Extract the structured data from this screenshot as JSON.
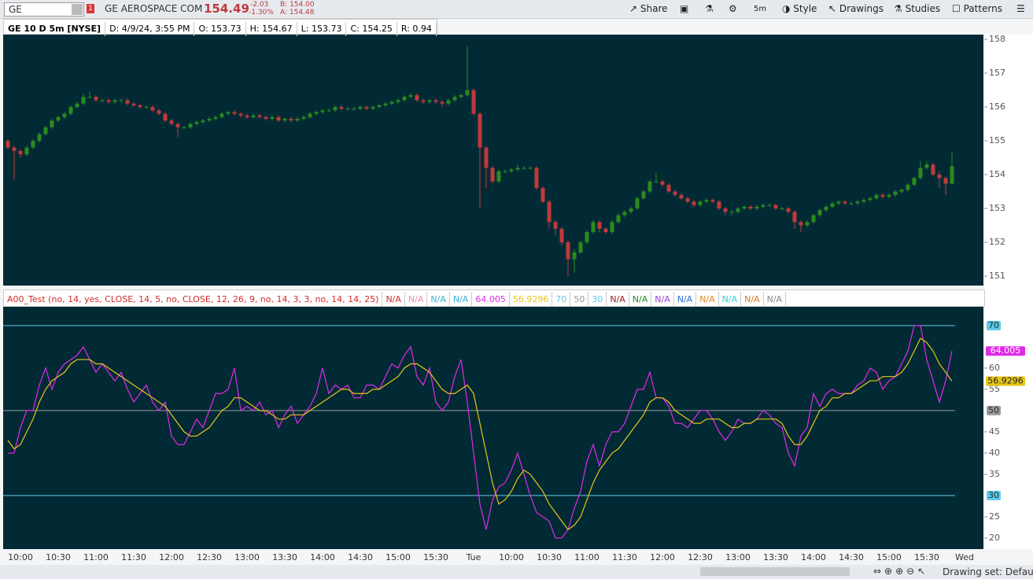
{
  "toolbar": {
    "symbol": "GE",
    "alert_count": "1",
    "company": "GE AEROSPACE COM",
    "last": "154.49",
    "change": "-2.03",
    "change_pct": "-1.30%",
    "bid": "B: 154.00",
    "ask": "A: 154.48",
    "buttons": [
      "Share",
      "5m",
      "Style",
      "Drawings",
      "Studies",
      "Patterns"
    ]
  },
  "info_bar": [
    "GE 10 D 5m [NYSE]",
    "D: 4/9/24, 3:55 PM",
    "O: 153.73",
    "H: 154.67",
    "L: 153.73",
    "C: 154.25",
    "R: 0.94"
  ],
  "study_legend": {
    "title": "A00_Test (no, 14, yes, CLOSE, 14, 5, no, CLOSE, 12, 26, 9, no, 14, 3, 3, no, 14, 14, 25)",
    "title_color": "#d42a2a",
    "items_before": [
      {
        "text": "N/A",
        "color": "#d42a2a"
      },
      {
        "text": "N/A",
        "color": "#f08ab0"
      },
      {
        "text": "N/A",
        "color": "#3aaed8"
      },
      {
        "text": "N/A",
        "color": "#3aaed8"
      }
    ],
    "items_after": [
      {
        "text": "N/A",
        "color": "#a01818"
      },
      {
        "text": "N/A",
        "color": "#1e8a1e"
      },
      {
        "text": "N/A",
        "color": "#9a3ae0"
      },
      {
        "text": "N/A",
        "color": "#2a6ad0"
      },
      {
        "text": "N/A",
        "color": "#e08a1a"
      },
      {
        "text": "N/A",
        "color": "#2ad0e0"
      },
      {
        "text": "N/A",
        "color": "#e07a1a"
      },
      {
        "text": "N/A",
        "color": "#888888"
      }
    ]
  },
  "next_session_label": "Wed",
  "status_bar": {
    "drawing_set": "Drawing set: Default"
  },
  "chart_data": [
    {
      "type": "candlestick",
      "up_color": "#2a8a1e",
      "down_color": "#c0393b",
      "ylim": [
        150.72,
        158.14
      ],
      "yticks": [
        151,
        152,
        153,
        154,
        155,
        156,
        157,
        158
      ],
      "open": [
        155.0,
        154.8,
        154.7,
        154.6,
        154.8,
        155.0,
        155.2,
        155.4,
        155.6,
        155.7,
        155.8,
        156.0,
        156.1,
        156.3,
        156.3,
        156.2,
        156.2,
        156.15,
        156.2,
        156.2,
        156.1,
        156.05,
        156.0,
        156.0,
        155.9,
        155.8,
        155.6,
        155.5,
        155.4,
        155.4,
        155.5,
        155.55,
        155.6,
        155.65,
        155.7,
        155.8,
        155.85,
        155.8,
        155.75,
        155.7,
        155.75,
        155.7,
        155.65,
        155.7,
        155.6,
        155.65,
        155.6,
        155.65,
        155.7,
        155.8,
        155.85,
        155.9,
        155.9,
        156.0,
        155.95,
        155.95,
        155.95,
        156.0,
        155.95,
        156.0,
        156.05,
        156.1,
        156.15,
        156.2,
        156.3,
        156.35,
        156.2,
        156.15,
        156.2,
        156.15,
        156.1,
        156.2,
        156.3,
        156.35,
        156.5,
        155.8,
        154.8,
        154.2,
        153.8,
        154.1,
        154.1,
        154.15,
        154.2,
        154.2,
        154.2,
        153.6,
        153.2,
        152.6,
        152.4,
        152.0,
        151.5,
        151.7,
        152.0,
        152.3,
        152.6,
        152.4,
        152.3,
        152.6,
        152.8,
        152.9,
        153.0,
        153.3,
        153.5,
        153.8,
        153.8,
        153.7,
        153.5,
        153.4,
        153.3,
        153.2,
        153.1,
        153.2,
        153.25,
        153.2,
        153.0,
        152.9,
        152.9,
        153.0,
        153.05,
        153.0,
        153.05,
        153.1,
        153.1,
        153.0,
        153.0,
        152.9,
        152.6,
        152.5,
        152.6,
        152.8,
        152.95,
        153.05,
        153.15,
        153.2,
        153.15,
        153.15,
        153.2,
        153.25,
        153.3,
        153.4,
        153.35,
        153.4,
        153.5,
        153.55,
        153.7,
        153.9,
        154.2,
        154.3,
        154.0,
        153.9,
        153.73
      ],
      "high": [
        155.05,
        154.85,
        154.75,
        154.85,
        155.05,
        155.25,
        155.45,
        155.65,
        155.75,
        155.85,
        156.05,
        156.15,
        156.4,
        156.45,
        156.35,
        156.25,
        156.25,
        156.25,
        156.25,
        156.25,
        156.15,
        156.1,
        156.05,
        156.05,
        155.95,
        155.85,
        155.65,
        155.55,
        155.45,
        155.55,
        155.6,
        155.65,
        155.7,
        155.75,
        155.85,
        155.9,
        155.9,
        155.85,
        155.8,
        155.8,
        155.8,
        155.75,
        155.75,
        155.75,
        155.7,
        155.7,
        155.7,
        155.75,
        155.85,
        155.9,
        155.95,
        155.95,
        156.05,
        156.05,
        156.0,
        156.0,
        156.05,
        156.05,
        156.05,
        156.1,
        156.15,
        156.2,
        156.25,
        156.35,
        156.4,
        156.4,
        156.25,
        156.25,
        156.25,
        156.2,
        156.25,
        156.35,
        156.4,
        157.8,
        156.55,
        155.85,
        154.85,
        154.25,
        154.15,
        154.15,
        154.2,
        154.3,
        154.25,
        154.25,
        154.25,
        153.65,
        153.25,
        152.65,
        152.45,
        152.05,
        151.8,
        152.05,
        152.35,
        152.65,
        152.65,
        152.45,
        152.65,
        152.85,
        152.95,
        153.05,
        153.35,
        153.55,
        153.85,
        154.05,
        153.85,
        153.75,
        153.55,
        153.45,
        153.35,
        153.25,
        153.25,
        153.3,
        153.3,
        153.25,
        153.05,
        152.95,
        153.05,
        153.1,
        153.1,
        153.1,
        153.15,
        153.15,
        153.15,
        153.05,
        153.05,
        152.95,
        152.65,
        152.65,
        152.85,
        153.0,
        153.1,
        153.2,
        153.25,
        153.25,
        153.2,
        153.25,
        153.3,
        153.35,
        153.45,
        153.45,
        153.45,
        153.55,
        153.6,
        153.75,
        153.95,
        154.4,
        154.4,
        154.35,
        154.1,
        153.95,
        154.67
      ],
      "low": [
        154.75,
        153.85,
        154.5,
        154.55,
        154.75,
        154.95,
        155.15,
        155.35,
        155.55,
        155.65,
        155.75,
        155.95,
        156.05,
        156.25,
        156.15,
        156.15,
        156.1,
        156.1,
        156.15,
        156.05,
        156.0,
        155.95,
        155.95,
        155.85,
        155.75,
        155.55,
        155.45,
        155.1,
        155.35,
        155.35,
        155.45,
        155.5,
        155.55,
        155.6,
        155.65,
        155.75,
        155.75,
        155.7,
        155.65,
        155.65,
        155.65,
        155.6,
        155.6,
        155.55,
        155.55,
        155.55,
        155.55,
        155.6,
        155.65,
        155.75,
        155.8,
        155.85,
        155.85,
        155.9,
        155.9,
        155.9,
        155.9,
        155.9,
        155.9,
        155.95,
        156.0,
        156.05,
        156.1,
        156.15,
        156.25,
        156.15,
        156.1,
        156.1,
        156.1,
        156.0,
        156.05,
        156.15,
        156.25,
        156.3,
        155.75,
        153.0,
        153.6,
        153.75,
        153.75,
        154.05,
        154.05,
        154.1,
        154.15,
        154.15,
        153.55,
        153.15,
        152.4,
        152.2,
        151.9,
        151.0,
        151.1,
        151.65,
        151.95,
        152.25,
        152.3,
        152.25,
        152.25,
        152.55,
        152.75,
        152.85,
        152.95,
        153.25,
        153.45,
        153.75,
        153.65,
        153.45,
        153.35,
        153.25,
        153.15,
        153.05,
        153.05,
        153.15,
        153.15,
        152.95,
        152.8,
        152.8,
        152.85,
        152.95,
        152.95,
        152.95,
        153.0,
        153.05,
        152.95,
        152.95,
        152.85,
        152.4,
        152.3,
        152.45,
        152.55,
        152.75,
        152.9,
        153.0,
        153.1,
        153.1,
        153.1,
        153.1,
        153.15,
        153.2,
        153.25,
        153.3,
        153.3,
        153.35,
        153.45,
        153.5,
        153.65,
        153.85,
        154.15,
        153.95,
        153.6,
        153.4,
        153.73
      ],
      "close": [
        154.8,
        154.7,
        154.6,
        154.8,
        155.0,
        155.2,
        155.4,
        155.6,
        155.7,
        155.8,
        156.0,
        156.1,
        156.3,
        156.3,
        156.2,
        156.2,
        156.15,
        156.2,
        156.2,
        156.1,
        156.05,
        156.0,
        156.0,
        155.9,
        155.8,
        155.6,
        155.5,
        155.4,
        155.4,
        155.5,
        155.55,
        155.6,
        155.65,
        155.7,
        155.8,
        155.85,
        155.8,
        155.75,
        155.7,
        155.75,
        155.7,
        155.65,
        155.7,
        155.6,
        155.65,
        155.6,
        155.65,
        155.7,
        155.8,
        155.85,
        155.9,
        155.9,
        156.0,
        155.95,
        155.95,
        155.95,
        156.0,
        155.95,
        156.0,
        156.05,
        156.1,
        156.15,
        156.2,
        156.3,
        156.35,
        156.2,
        156.15,
        156.2,
        156.15,
        156.1,
        156.2,
        156.3,
        156.35,
        156.5,
        155.8,
        154.8,
        154.2,
        153.8,
        154.1,
        154.1,
        154.15,
        154.2,
        154.2,
        154.2,
        153.6,
        153.2,
        152.6,
        152.4,
        152.0,
        151.5,
        151.7,
        152.0,
        152.3,
        152.6,
        152.4,
        152.3,
        152.6,
        152.8,
        152.9,
        153.0,
        153.3,
        153.5,
        153.8,
        153.8,
        153.7,
        153.5,
        153.4,
        153.3,
        153.2,
        153.1,
        153.2,
        153.25,
        153.2,
        153.0,
        152.9,
        152.9,
        153.0,
        153.05,
        153.0,
        153.05,
        153.1,
        153.1,
        153.0,
        153.0,
        152.9,
        152.6,
        152.5,
        152.6,
        152.8,
        152.95,
        153.05,
        153.15,
        153.2,
        153.15,
        153.15,
        153.2,
        153.25,
        153.3,
        153.4,
        153.35,
        153.4,
        153.5,
        153.55,
        153.7,
        153.9,
        154.2,
        154.3,
        154.0,
        153.9,
        153.73,
        154.25
      ]
    },
    {
      "type": "line",
      "ylim": [
        17.4,
        74.6
      ],
      "yticks": [
        20,
        25,
        35,
        40,
        45,
        55,
        60
      ],
      "levels": [
        {
          "value": 70,
          "color": "#5fc9e8"
        },
        {
          "value": 50,
          "color": "#9a9a9a"
        },
        {
          "value": 30,
          "color": "#5fc9e8"
        }
      ],
      "categories": [
        null,
        null,
        "10:00",
        null,
        null,
        null,
        null,
        null,
        "10:30",
        null,
        null,
        null,
        null,
        null,
        "11:00",
        null,
        null,
        null,
        null,
        null,
        "11:30",
        null,
        null,
        null,
        null,
        null,
        "12:00",
        null,
        null,
        null,
        null,
        null,
        "12:30",
        null,
        null,
        null,
        null,
        null,
        "13:00",
        null,
        null,
        null,
        null,
        null,
        "13:30",
        null,
        null,
        null,
        null,
        null,
        "14:00",
        null,
        null,
        null,
        null,
        null,
        "14:30",
        null,
        null,
        null,
        null,
        null,
        "15:00",
        null,
        null,
        null,
        null,
        null,
        "15:30",
        null,
        null,
        null,
        null,
        null,
        "Tue",
        null,
        null,
        null,
        null,
        null,
        "10:00",
        null,
        null,
        null,
        null,
        null,
        "10:30",
        null,
        null,
        null,
        null,
        null,
        "11:00",
        null,
        null,
        null,
        null,
        null,
        "11:30",
        null,
        null,
        null,
        null,
        null,
        "12:00",
        null,
        null,
        null,
        null,
        null,
        "12:30",
        null,
        null,
        null,
        null,
        null,
        "13:00",
        null,
        null,
        null,
        null,
        null,
        "13:30",
        null,
        null,
        null,
        null,
        null,
        "14:00",
        null,
        null,
        null,
        null,
        null,
        "14:30",
        null,
        null,
        null,
        null,
        null,
        "15:00",
        null,
        null,
        null,
        null,
        null,
        "15:30",
        null,
        null,
        null,
        null
      ],
      "series": [
        {
          "name": "RSI",
          "color": "#e02ae8",
          "values": [
            40,
            40,
            46,
            50,
            50,
            56,
            60,
            55,
            59,
            61,
            62,
            63,
            65,
            62,
            59,
            61,
            59,
            57,
            59,
            55,
            52,
            54,
            56,
            52,
            50,
            52,
            44,
            42,
            42,
            45,
            48,
            46,
            50,
            54,
            54,
            55,
            60,
            50,
            51,
            50,
            52,
            49,
            50,
            46,
            49,
            51,
            47,
            49,
            51,
            54,
            60,
            54,
            56,
            55,
            56,
            53,
            53,
            56,
            56,
            55,
            58,
            61,
            60,
            63,
            65,
            58,
            56,
            60,
            52,
            50,
            52,
            58,
            62,
            52,
            40,
            28,
            22,
            29,
            32,
            33,
            36,
            40,
            35,
            30,
            26,
            25,
            24,
            20,
            20,
            22,
            27,
            31,
            38,
            42,
            37,
            42,
            45,
            45,
            47,
            51,
            55,
            55,
            59,
            53,
            53,
            51,
            47,
            47,
            46,
            48,
            50,
            50,
            48,
            45,
            43,
            45,
            48,
            47,
            47,
            48,
            50,
            49,
            47,
            46,
            40,
            37,
            44,
            46,
            54,
            51,
            54,
            55,
            54,
            54,
            54,
            56,
            57,
            60,
            59,
            55,
            57,
            58,
            61,
            64,
            70,
            70,
            62,
            57,
            52,
            57,
            64.005
          ]
        },
        {
          "name": "Average",
          "color": "#e6c619",
          "values": [
            43,
            41,
            42,
            45,
            48,
            52,
            55,
            57,
            58,
            59,
            61,
            62,
            62,
            62,
            61,
            61,
            60,
            59,
            58,
            57,
            56,
            55,
            54,
            53,
            52,
            51,
            49,
            47,
            45,
            44,
            44,
            45,
            46,
            48,
            50,
            51,
            53,
            53,
            52,
            51,
            50,
            50,
            49,
            48,
            48,
            49,
            49,
            49,
            50,
            51,
            52,
            53,
            54,
            55,
            55,
            54,
            54,
            54,
            55,
            55,
            56,
            57,
            58,
            60,
            61,
            61,
            60,
            59,
            57,
            55,
            54,
            54,
            55,
            56,
            54,
            47,
            40,
            33,
            28,
            29,
            31,
            34,
            36,
            35,
            33,
            31,
            28,
            26,
            24,
            22,
            23,
            25,
            29,
            33,
            36,
            38,
            40,
            41,
            43,
            45,
            47,
            49,
            52,
            53,
            53,
            52,
            50,
            49,
            48,
            47,
            47,
            48,
            48,
            48,
            47,
            46,
            46,
            47,
            47,
            48,
            48,
            48,
            48,
            47,
            44,
            42,
            42,
            44,
            47,
            50,
            51,
            53,
            53,
            54,
            54,
            55,
            56,
            57,
            57,
            58,
            58,
            58,
            59,
            61,
            64,
            67,
            66,
            64,
            61,
            59,
            56.9296
          ]
        }
      ]
    }
  ]
}
